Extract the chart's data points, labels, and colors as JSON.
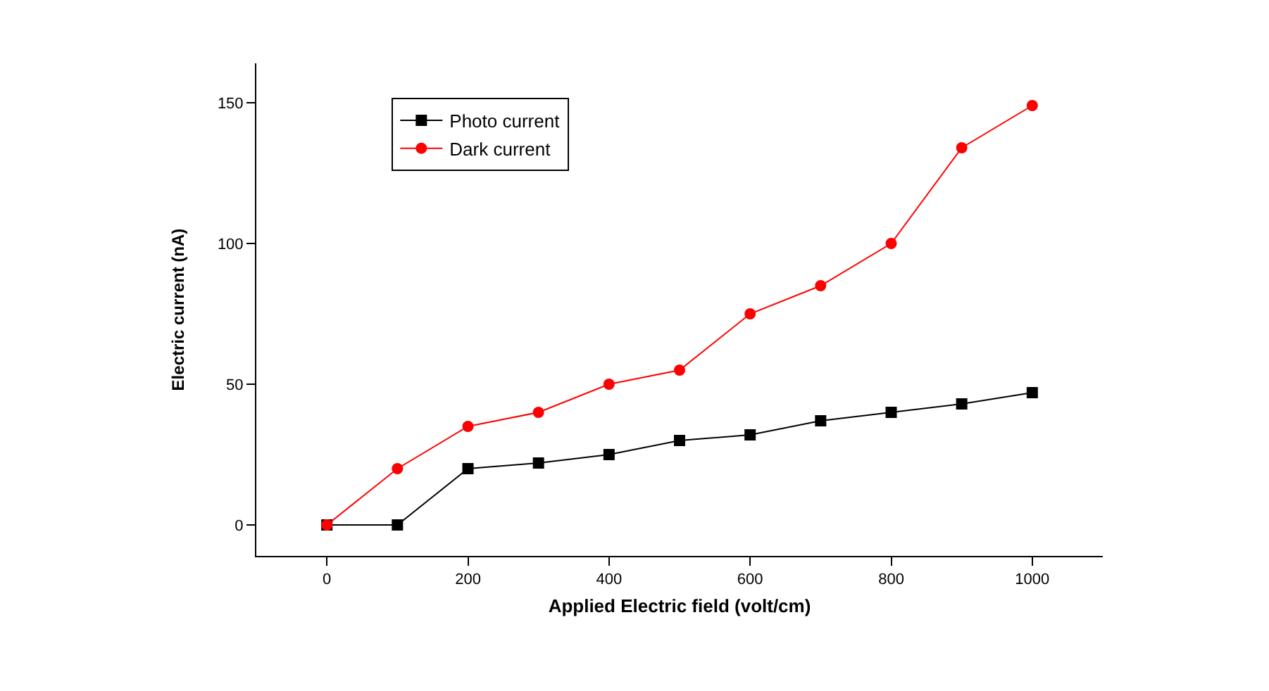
{
  "chart_data": {
    "type": "line",
    "xlabel": "Applied Electric field (volt/cm)",
    "ylabel": "Electric current (nA)",
    "x": [
      0,
      100,
      200,
      300,
      400,
      500,
      600,
      700,
      800,
      900,
      1000
    ],
    "series": [
      {
        "name": "Photo current",
        "color": "#000000",
        "marker": "square",
        "values": [
          0,
          0,
          20,
          22,
          25,
          30,
          32,
          37,
          40,
          43,
          47
        ]
      },
      {
        "name": "Dark current",
        "color": "#ff0000",
        "marker": "circle",
        "values": [
          0,
          20,
          35,
          40,
          50,
          55,
          75,
          85,
          100,
          134,
          149
        ]
      }
    ],
    "xlim": [
      -100,
      1100
    ],
    "xticks": [
      0,
      200,
      400,
      600,
      800,
      1000
    ],
    "ylim": [
      -11,
      164
    ],
    "yticks": [
      0,
      50,
      100,
      150
    ],
    "grid": false,
    "legend": "top left",
    "line_style": "solid"
  }
}
